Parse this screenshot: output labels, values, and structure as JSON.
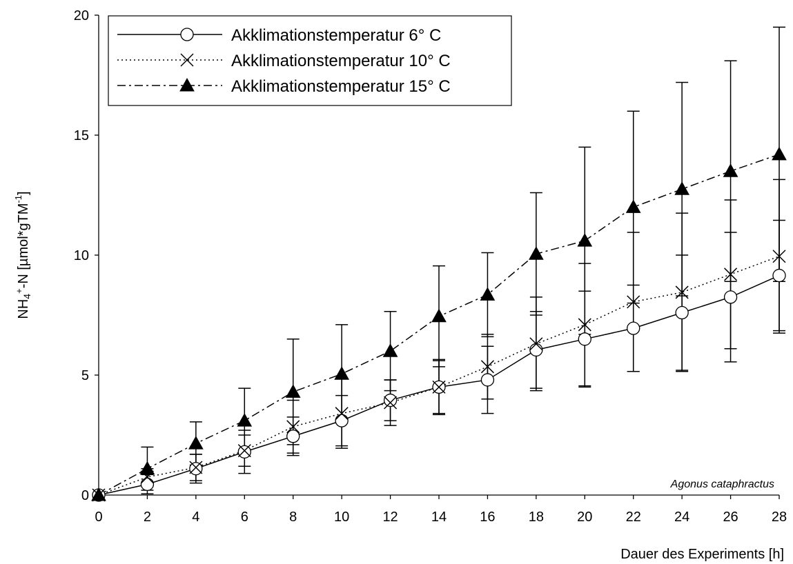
{
  "chart_data": {
    "type": "line",
    "title": "",
    "xlabel": "Dauer des Experiments [h]",
    "ylabel": {
      "base": "NH",
      "sub": "4",
      "sup": "+",
      "mid": "-N [µmol*gTM",
      "sup2": "-1",
      "end": "]"
    },
    "annotation": "Agonus cataphractus",
    "xlim": [
      0,
      28
    ],
    "ylim": [
      0,
      20
    ],
    "x_ticks": [
      "0",
      "2",
      "4",
      "6",
      "8",
      "10",
      "12",
      "14",
      "16",
      "18",
      "20",
      "22",
      "24",
      "26",
      "28"
    ],
    "y_ticks": [
      "0",
      "5",
      "10",
      "15",
      "20"
    ],
    "grid": false,
    "legend_position": "top-left",
    "x": [
      0,
      2,
      4,
      6,
      8,
      10,
      12,
      14,
      16,
      18,
      20,
      22,
      24,
      26,
      28
    ],
    "series": [
      {
        "name": "Akklimationstemperatur 6° C",
        "marker": "circle-open",
        "line": "solid",
        "values": [
          0,
          0.45,
          1.1,
          1.8,
          2.45,
          3.1,
          3.95,
          4.5,
          4.8,
          6.05,
          6.5,
          6.95,
          7.6,
          8.25,
          9.15
        ],
        "errors": [
          0,
          0.4,
          0.6,
          0.9,
          0.8,
          1.05,
          0.85,
          1.1,
          1.4,
          1.6,
          2.0,
          1.8,
          2.4,
          2.7,
          2.3
        ]
      },
      {
        "name": "Akklimationstemperatur 10° C",
        "marker": "cross",
        "line": "dotted",
        "values": [
          0,
          0.75,
          1.15,
          1.85,
          2.85,
          3.4,
          3.85,
          4.5,
          5.35,
          6.3,
          7.1,
          8.05,
          8.45,
          9.2,
          9.95
        ],
        "errors": [
          0,
          0.35,
          0.55,
          0.65,
          1.1,
          1.45,
          0.95,
          1.15,
          1.35,
          1.95,
          2.55,
          2.9,
          3.3,
          3.1,
          3.2
        ]
      },
      {
        "name": "Akklimationstemperatur 15° C",
        "marker": "triangle-filled",
        "line": "dash-dot",
        "values": [
          0,
          1.1,
          2.15,
          3.1,
          4.3,
          5.05,
          6.0,
          7.45,
          8.35,
          10.05,
          10.6,
          12.0,
          12.75,
          13.5,
          14.2
        ],
        "errors": [
          0,
          0.9,
          0.9,
          1.35,
          2.2,
          2.05,
          1.65,
          2.1,
          1.75,
          2.55,
          3.9,
          4.0,
          4.45,
          4.6,
          5.3
        ]
      }
    ]
  }
}
